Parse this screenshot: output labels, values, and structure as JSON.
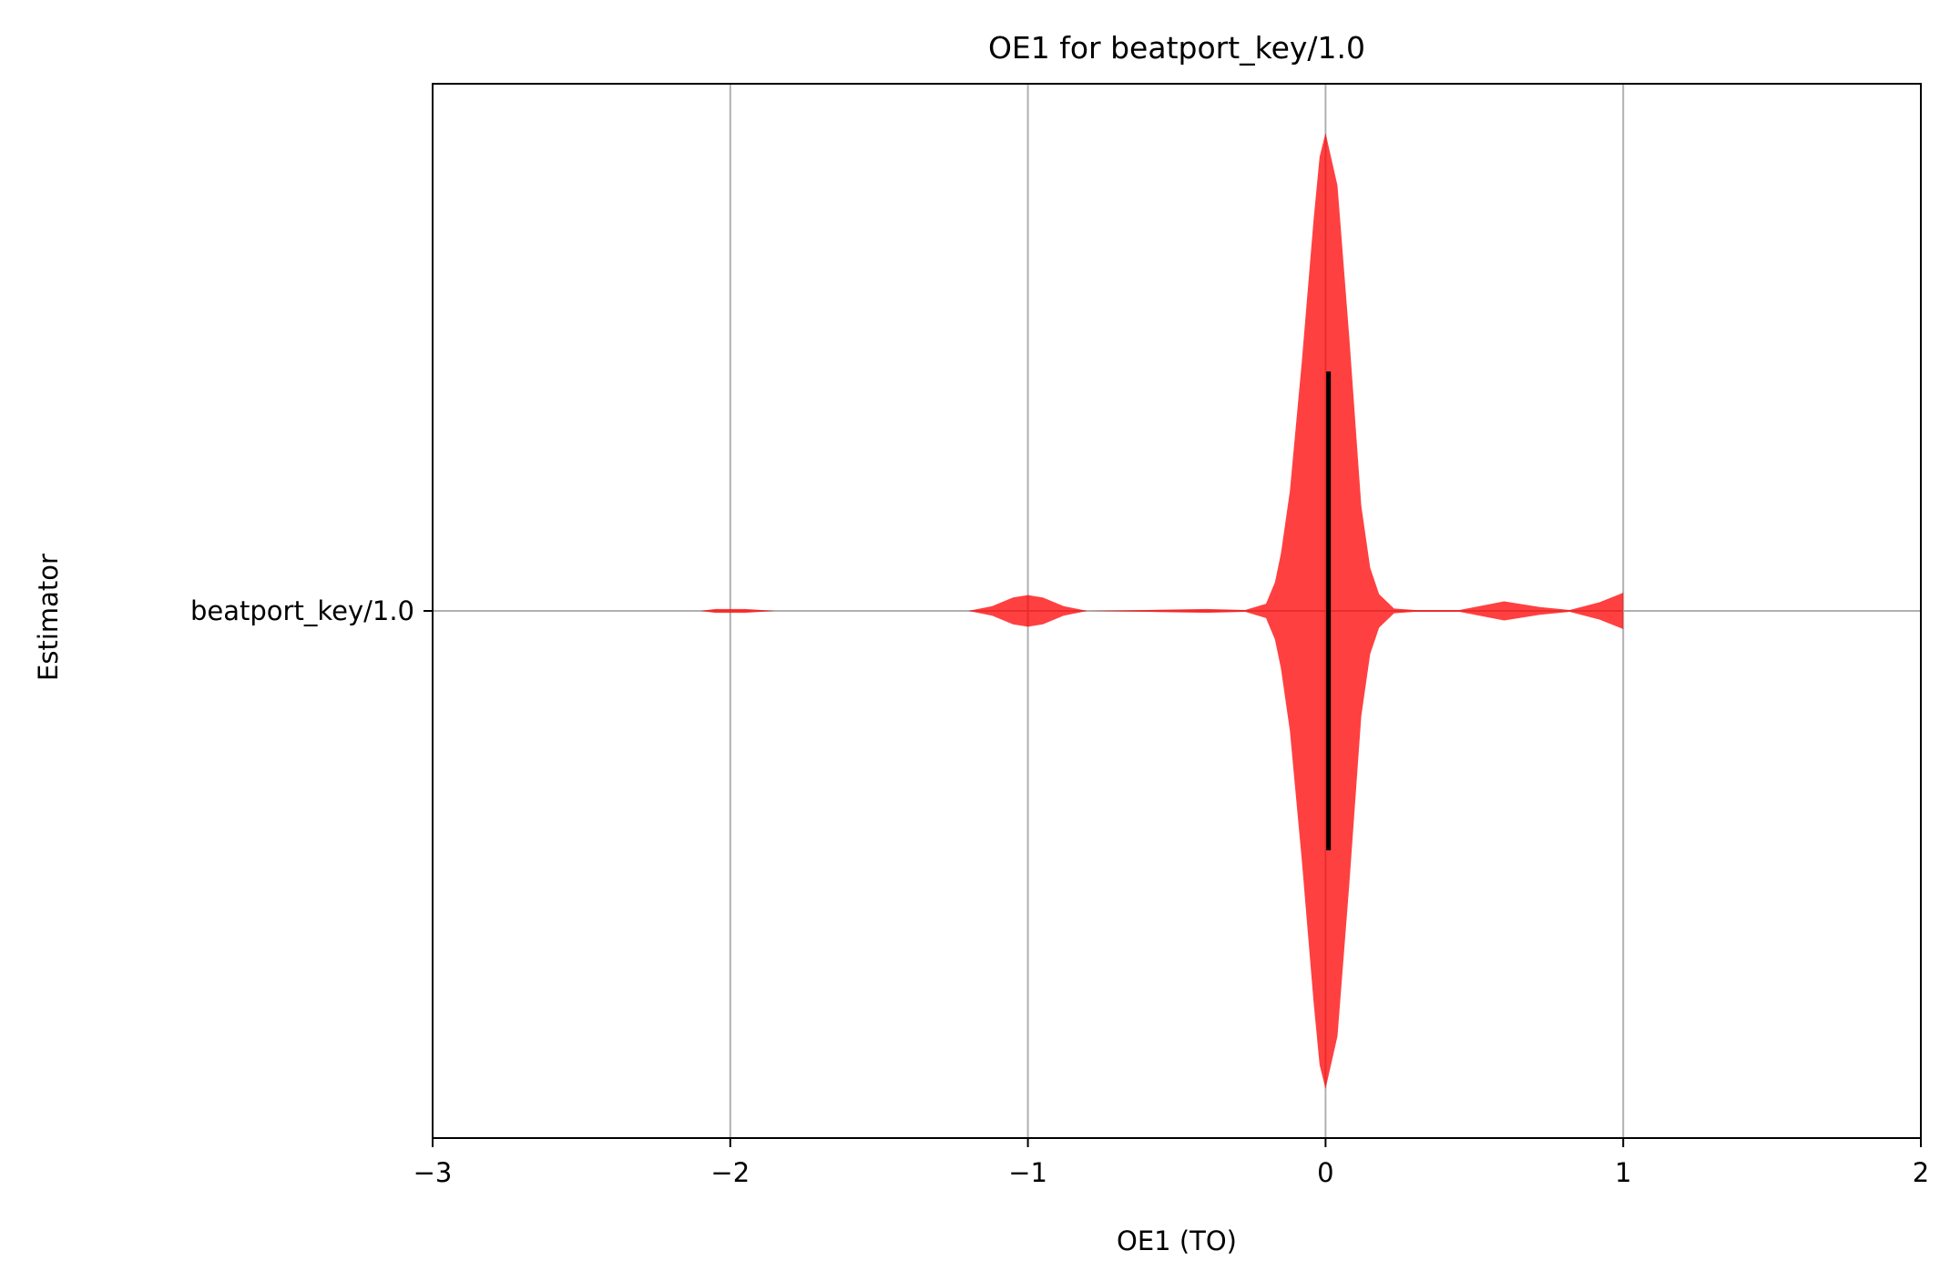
{
  "chart_data": {
    "type": "violin",
    "title": "OE1 for beatport_key/1.0",
    "xlabel": "OE1 (TO)",
    "ylabel": "Estimator",
    "xlim": [
      -3,
      2
    ],
    "x_ticks": [
      -3,
      -2,
      -1,
      0,
      1,
      2
    ],
    "x_tick_labels": [
      "−3",
      "−2",
      "−1",
      "0",
      "1",
      "2"
    ],
    "categories": [
      "beatport_key/1.0"
    ],
    "grid": true,
    "series": [
      {
        "name": "beatport_key/1.0",
        "color": "#ff0000",
        "opacity": 0.75,
        "median": 0.01,
        "density": [
          {
            "x": -2.1,
            "d": 0.0
          },
          {
            "x": -2.05,
            "d": 0.004
          },
          {
            "x": -1.95,
            "d": 0.004
          },
          {
            "x": -1.85,
            "d": 0.0
          },
          {
            "x": -1.2,
            "d": 0.0
          },
          {
            "x": -1.12,
            "d": 0.01
          },
          {
            "x": -1.05,
            "d": 0.028
          },
          {
            "x": -1.0,
            "d": 0.033
          },
          {
            "x": -0.95,
            "d": 0.028
          },
          {
            "x": -0.88,
            "d": 0.01
          },
          {
            "x": -0.8,
            "d": 0.0
          },
          {
            "x": -0.6,
            "d": 0.002
          },
          {
            "x": -0.4,
            "d": 0.004
          },
          {
            "x": -0.27,
            "d": 0.002
          },
          {
            "x": -0.2,
            "d": 0.015
          },
          {
            "x": -0.17,
            "d": 0.06
          },
          {
            "x": -0.15,
            "d": 0.12
          },
          {
            "x": -0.12,
            "d": 0.25
          },
          {
            "x": -0.08,
            "d": 0.52
          },
          {
            "x": -0.04,
            "d": 0.82
          },
          {
            "x": -0.02,
            "d": 0.95
          },
          {
            "x": 0.0,
            "d": 1.0
          },
          {
            "x": 0.04,
            "d": 0.89
          },
          {
            "x": 0.08,
            "d": 0.57
          },
          {
            "x": 0.12,
            "d": 0.22
          },
          {
            "x": 0.15,
            "d": 0.09
          },
          {
            "x": 0.18,
            "d": 0.035
          },
          {
            "x": 0.23,
            "d": 0.005
          },
          {
            "x": 0.3,
            "d": 0.002
          },
          {
            "x": 0.45,
            "d": 0.002
          },
          {
            "x": 0.6,
            "d": 0.02
          },
          {
            "x": 0.72,
            "d": 0.008
          },
          {
            "x": 0.82,
            "d": 0.002
          },
          {
            "x": 0.92,
            "d": 0.018
          },
          {
            "x": 1.0,
            "d": 0.038
          }
        ]
      }
    ]
  }
}
